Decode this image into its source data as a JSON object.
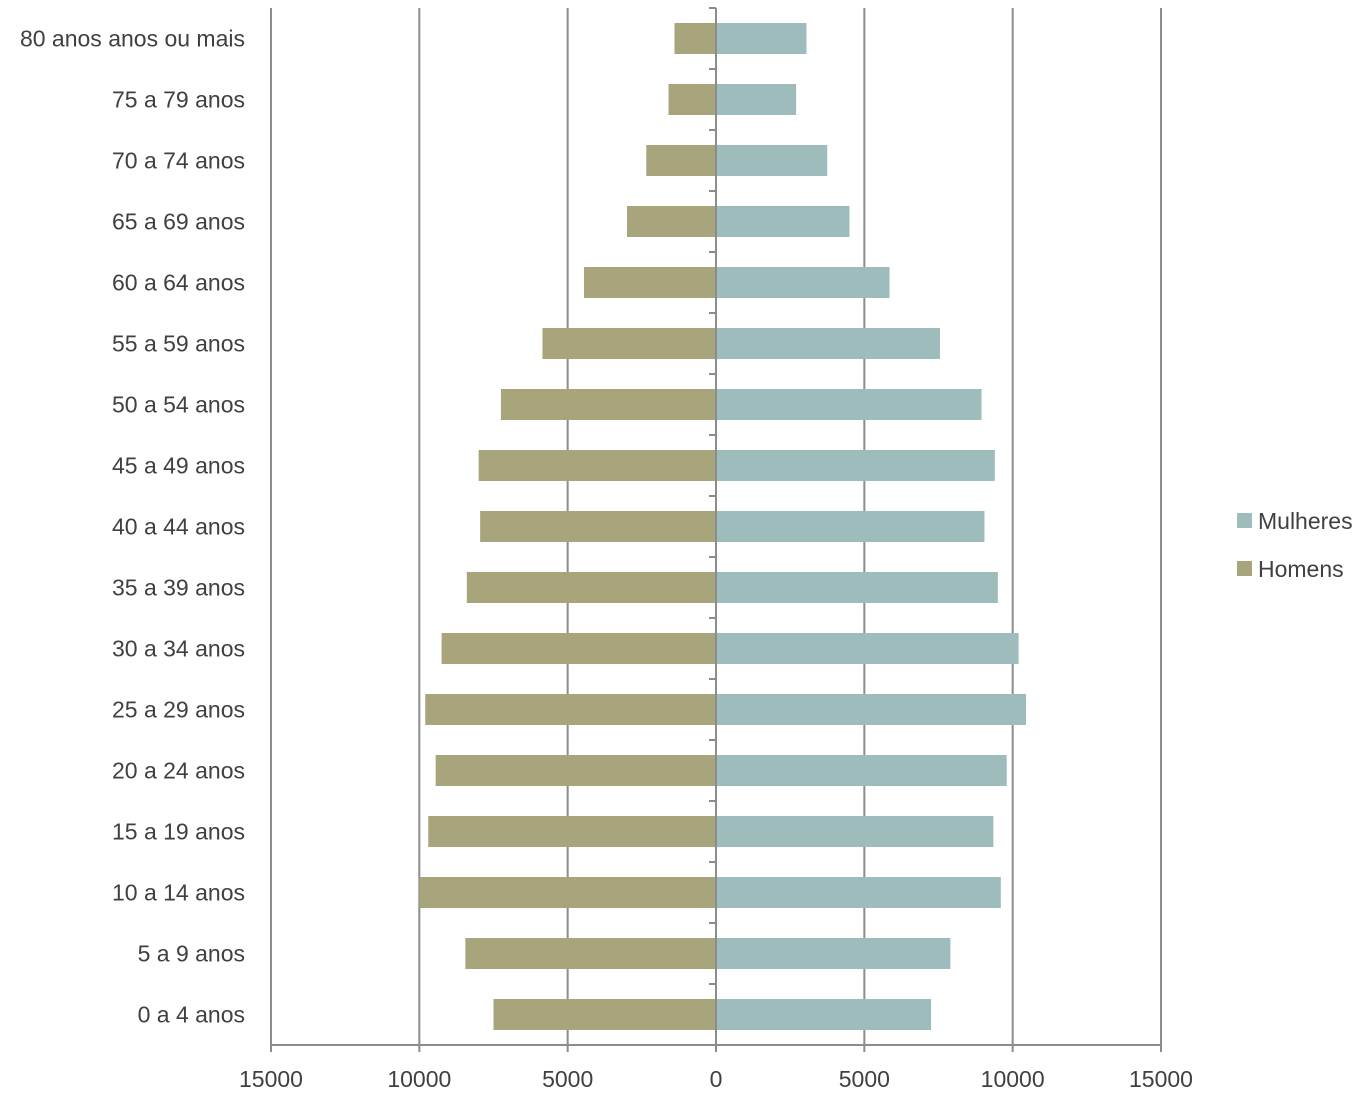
{
  "chart_data": {
    "type": "bar",
    "orientation": "horizontal",
    "categories": [
      "0 a 4 anos",
      "5 a 9 anos",
      "10 a 14 anos",
      "15 a 19 anos",
      "20 a 24 anos",
      "25 a 29 anos",
      "30 a 34 anos",
      "35 a 39 anos",
      "40 a 44 anos",
      "45 a 49 anos",
      "50 a 54 anos",
      "55 a 59 anos",
      "60 a 64 anos",
      "65 a 69 anos",
      "70 a 74 anos",
      "75 a 79 anos",
      "80 anos anos ou mais"
    ],
    "series": [
      {
        "name": "Mulheres",
        "color": "#9dbcbb",
        "values": [
          7250,
          7900,
          9600,
          9350,
          9800,
          10450,
          10200,
          9500,
          9050,
          9400,
          8950,
          7550,
          5850,
          4500,
          3750,
          2700,
          3050
        ]
      },
      {
        "name": "Homens",
        "color": "#a8a57d",
        "values": [
          7500,
          8450,
          10000,
          9700,
          9450,
          9800,
          9250,
          8400,
          7950,
          8000,
          7250,
          5850,
          4450,
          3000,
          2350,
          1600,
          1400
        ]
      }
    ],
    "xlim": [
      -15000,
      15000
    ],
    "x_ticks": [
      -15000,
      -10000,
      -5000,
      0,
      5000,
      10000,
      15000
    ],
    "x_tick_labels": [
      "15000",
      "10000",
      "5000",
      "0",
      "5000",
      "10000",
      "15000"
    ],
    "grid": "vertical",
    "legend": "right",
    "title": "",
    "xlabel": "",
    "ylabel": ""
  }
}
